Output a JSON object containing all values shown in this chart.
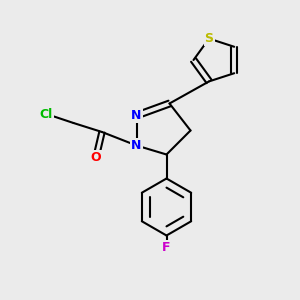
{
  "bg_color": "#ebebeb",
  "bond_color": "#000000",
  "atom_colors": {
    "Cl": "#00bb00",
    "O": "#ff0000",
    "N": "#0000ff",
    "S": "#bbbb00",
    "F": "#cc00cc",
    "C": "#000000"
  },
  "figsize": [
    3.0,
    3.0
  ],
  "dpi": 100
}
